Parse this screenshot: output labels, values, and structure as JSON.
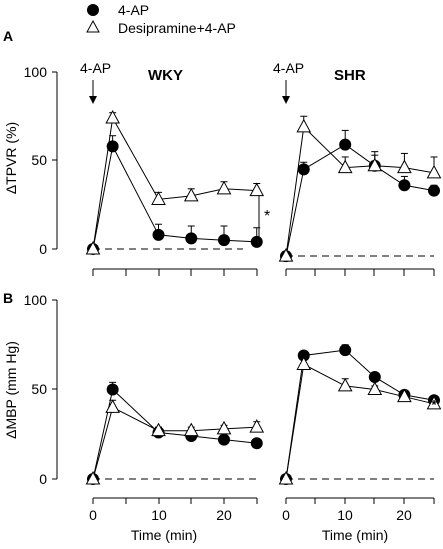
{
  "legend": [
    {
      "label": "4-AP",
      "marker": "filled-circle"
    },
    {
      "label": "Desipramine+4-AP",
      "marker": "open-triangle"
    }
  ],
  "panel_a": {
    "label": "A",
    "ylabel": "ΔTPVR (%)",
    "yticks": [
      "0",
      "50",
      "100"
    ],
    "annotation": "4-AP",
    "significance": "*",
    "subplots": [
      {
        "title": "WKY"
      },
      {
        "title": "SHR"
      }
    ]
  },
  "panel_b": {
    "label": "B",
    "ylabel": "ΔMBP (mm Hg)",
    "yticks": [
      "0",
      "50",
      "100"
    ],
    "xticks": [
      "0",
      "10",
      "20"
    ],
    "xlabel": "Time (min)"
  },
  "chart_data": [
    {
      "panel": "A",
      "subplot": "WKY",
      "type": "line",
      "ylabel": "ΔTPVR (%)",
      "ylim": [
        0,
        100
      ],
      "xlim": [
        0,
        25
      ],
      "series": [
        {
          "name": "4-AP",
          "x": [
            0,
            3,
            10,
            15,
            20,
            25
          ],
          "values": [
            0,
            58,
            8,
            6,
            5,
            4
          ],
          "err": [
            0,
            6,
            6,
            7,
            8,
            8
          ],
          "starred": [
            false,
            true,
            false,
            false,
            false,
            false
          ]
        },
        {
          "name": "Desipramine+4-AP",
          "x": [
            0,
            3,
            10,
            15,
            20,
            25
          ],
          "values": [
            0,
            74,
            28,
            30,
            34,
            33
          ],
          "err": [
            0,
            3,
            4,
            4,
            4,
            4
          ],
          "starred": [
            false,
            false,
            false,
            false,
            false,
            false
          ]
        }
      ]
    },
    {
      "panel": "A",
      "subplot": "SHR",
      "type": "line",
      "ylabel": "ΔTPVR (%)",
      "ylim": [
        0,
        100
      ],
      "xlim": [
        0,
        25
      ],
      "series": [
        {
          "name": "4-AP",
          "x": [
            0,
            3,
            10,
            15,
            20,
            25
          ],
          "values": [
            -4,
            45,
            59,
            47,
            36,
            33
          ],
          "err": [
            0,
            4,
            8,
            6,
            5,
            3
          ],
          "starred": [
            false,
            true,
            false,
            false,
            false,
            true
          ]
        },
        {
          "name": "Desipramine+4-AP",
          "x": [
            0,
            3,
            10,
            15,
            20,
            25
          ],
          "values": [
            -4,
            69,
            46,
            47,
            46,
            43
          ],
          "err": [
            0,
            6,
            6,
            8,
            8,
            9
          ],
          "starred": [
            false,
            false,
            false,
            false,
            false,
            false
          ]
        }
      ]
    },
    {
      "panel": "B",
      "subplot": "WKY",
      "type": "line",
      "ylabel": "ΔMBP (mm Hg)",
      "xlabel": "Time (min)",
      "ylim": [
        0,
        100
      ],
      "xlim": [
        0,
        25
      ],
      "series": [
        {
          "name": "4-AP",
          "x": [
            0,
            3,
            10,
            15,
            20,
            25
          ],
          "values": [
            0,
            50,
            26,
            24,
            22,
            20
          ],
          "err": [
            0,
            4,
            2,
            2,
            2,
            2
          ],
          "starred": [
            false,
            true,
            false,
            false,
            false,
            true
          ]
        },
        {
          "name": "Desipramine+4-AP",
          "x": [
            0,
            3,
            10,
            15,
            20,
            25
          ],
          "values": [
            0,
            40,
            27,
            27,
            28,
            29
          ],
          "err": [
            0,
            4,
            2,
            2,
            2,
            3
          ],
          "starred": [
            false,
            false,
            false,
            false,
            false,
            false
          ]
        }
      ]
    },
    {
      "panel": "B",
      "subplot": "SHR",
      "type": "line",
      "ylabel": "ΔMBP (mm Hg)",
      "xlabel": "Time (min)",
      "ylim": [
        0,
        100
      ],
      "xlim": [
        0,
        25
      ],
      "series": [
        {
          "name": "4-AP",
          "x": [
            0,
            3,
            10,
            15,
            20,
            25
          ],
          "values": [
            0,
            69,
            72,
            57,
            47,
            44
          ],
          "err": [
            0,
            2,
            3,
            2,
            2,
            2
          ],
          "starred": [
            false,
            false,
            false,
            false,
            false,
            false
          ]
        },
        {
          "name": "Desipramine+4-AP",
          "x": [
            0,
            3,
            10,
            15,
            20,
            25
          ],
          "values": [
            0,
            64,
            52,
            50,
            46,
            42
          ],
          "err": [
            0,
            4,
            4,
            2,
            2,
            3
          ],
          "starred": [
            false,
            false,
            false,
            false,
            false,
            true
          ]
        }
      ]
    }
  ]
}
